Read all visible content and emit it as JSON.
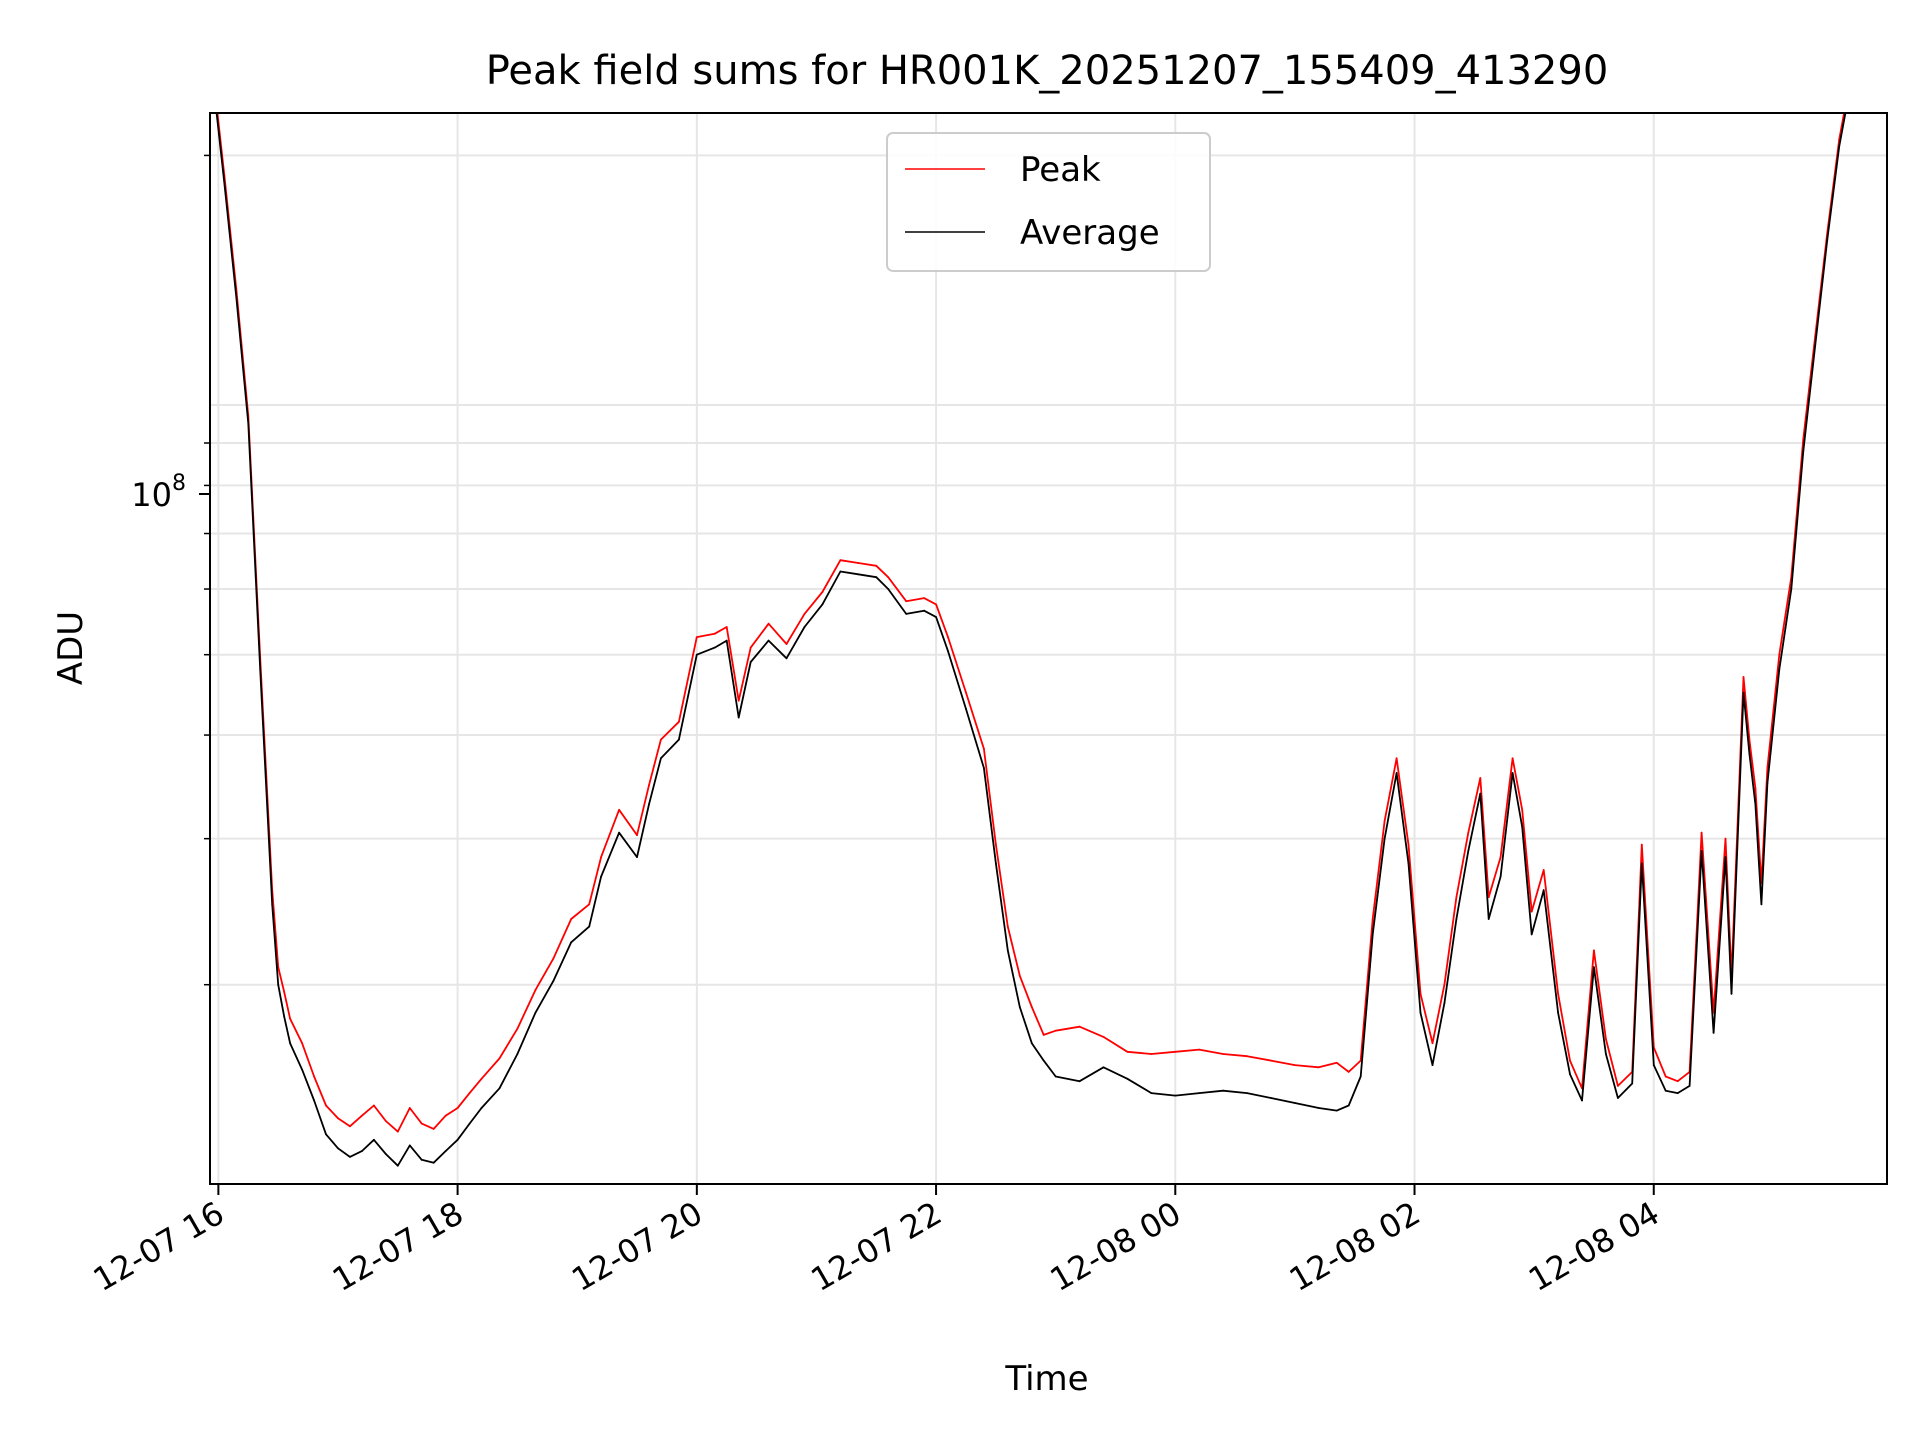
{
  "chart_data": {
    "type": "line",
    "title": "Peak field sums for HR001K_20251207_155409_413290",
    "xlabel": "Time",
    "ylabel": "ADU",
    "yscale": "log",
    "ylim": [
      11500000,
      225000000
    ],
    "xlim_hours": [
      -0.07,
      13.95
    ],
    "x_tick_labels": [
      "12-07 16",
      "12-07 18",
      "12-07 20",
      "12-07 22",
      "12-08 00",
      "12-08 02",
      "12-08 04"
    ],
    "x_tick_hours": [
      0,
      2,
      4,
      6,
      8,
      10,
      12
    ],
    "y_tick_label": {
      "base": "10",
      "exponent": "8"
    },
    "y_tick_value": 100000000,
    "grid": true,
    "legend_placement": "upper-center",
    "legend": [
      {
        "name": "Peak",
        "color": "#ff0000"
      },
      {
        "name": "Average",
        "color": "#000000"
      }
    ],
    "x_unit": "hours since 12-07 16:00",
    "series": [
      {
        "name": "Average",
        "color": "#000000",
        "points": [
          [
            -0.05,
            250000000
          ],
          [
            0.05,
            185000000
          ],
          [
            0.15,
            135000000
          ],
          [
            0.25,
            95000000
          ],
          [
            0.35,
            48000000
          ],
          [
            0.45,
            25000000
          ],
          [
            0.5,
            20000000
          ],
          [
            0.55,
            18300000
          ],
          [
            0.6,
            17000000
          ],
          [
            0.7,
            15800000
          ],
          [
            0.8,
            14500000
          ],
          [
            0.9,
            13200000
          ],
          [
            1.0,
            12700000
          ],
          [
            1.1,
            12400000
          ],
          [
            1.2,
            12600000
          ],
          [
            1.3,
            13000000
          ],
          [
            1.4,
            12500000
          ],
          [
            1.5,
            12100000
          ],
          [
            1.6,
            12800000
          ],
          [
            1.7,
            12300000
          ],
          [
            1.8,
            12200000
          ],
          [
            1.9,
            12600000
          ],
          [
            2.0,
            13000000
          ],
          [
            2.1,
            13600000
          ],
          [
            2.2,
            14200000
          ],
          [
            2.35,
            15000000
          ],
          [
            2.5,
            16500000
          ],
          [
            2.65,
            18500000
          ],
          [
            2.8,
            20200000
          ],
          [
            2.95,
            22500000
          ],
          [
            3.1,
            23500000
          ],
          [
            3.2,
            27000000
          ],
          [
            3.35,
            30500000
          ],
          [
            3.5,
            28500000
          ],
          [
            3.6,
            33000000
          ],
          [
            3.7,
            37500000
          ],
          [
            3.85,
            39500000
          ],
          [
            4.0,
            50000000
          ],
          [
            4.15,
            51000000
          ],
          [
            4.25,
            52000000
          ],
          [
            4.35,
            42000000
          ],
          [
            4.45,
            49000000
          ],
          [
            4.6,
            52000000
          ],
          [
            4.75,
            49500000
          ],
          [
            4.9,
            54000000
          ],
          [
            5.05,
            57500000
          ],
          [
            5.2,
            63000000
          ],
          [
            5.35,
            62500000
          ],
          [
            5.5,
            62000000
          ],
          [
            5.6,
            60000000
          ],
          [
            5.75,
            56000000
          ],
          [
            5.9,
            56500000
          ],
          [
            6.0,
            55500000
          ],
          [
            6.1,
            50500000
          ],
          [
            6.25,
            43000000
          ],
          [
            6.4,
            36500000
          ],
          [
            6.5,
            28000000
          ],
          [
            6.6,
            22000000
          ],
          [
            6.7,
            18800000
          ],
          [
            6.8,
            17000000
          ],
          [
            6.9,
            16200000
          ],
          [
            7.0,
            15500000
          ],
          [
            7.2,
            15300000
          ],
          [
            7.4,
            15900000
          ],
          [
            7.6,
            15400000
          ],
          [
            7.8,
            14800000
          ],
          [
            8.0,
            14700000
          ],
          [
            8.2,
            14800000
          ],
          [
            8.4,
            14900000
          ],
          [
            8.6,
            14800000
          ],
          [
            8.8,
            14600000
          ],
          [
            9.0,
            14400000
          ],
          [
            9.2,
            14200000
          ],
          [
            9.35,
            14100000
          ],
          [
            9.45,
            14300000
          ],
          [
            9.55,
            15500000
          ],
          [
            9.65,
            23000000
          ],
          [
            9.75,
            30000000
          ],
          [
            9.85,
            36000000
          ],
          [
            9.95,
            28000000
          ],
          [
            10.05,
            18500000
          ],
          [
            10.15,
            16000000
          ],
          [
            10.25,
            19000000
          ],
          [
            10.35,
            24000000
          ],
          [
            10.45,
            29000000
          ],
          [
            10.55,
            34000000
          ],
          [
            10.62,
            24000000
          ],
          [
            10.72,
            27000000
          ],
          [
            10.82,
            36000000
          ],
          [
            10.9,
            31000000
          ],
          [
            10.98,
            23000000
          ],
          [
            11.08,
            26000000
          ],
          [
            11.2,
            18500000
          ],
          [
            11.3,
            15600000
          ],
          [
            11.4,
            14500000
          ],
          [
            11.5,
            21000000
          ],
          [
            11.6,
            16500000
          ],
          [
            11.7,
            14600000
          ],
          [
            11.82,
            15200000
          ],
          [
            11.9,
            28000000
          ],
          [
            12.0,
            16000000
          ],
          [
            12.1,
            14900000
          ],
          [
            12.2,
            14800000
          ],
          [
            12.3,
            15100000
          ],
          [
            12.4,
            29000000
          ],
          [
            12.5,
            17500000
          ],
          [
            12.6,
            28500000
          ],
          [
            12.65,
            19500000
          ],
          [
            12.75,
            45000000
          ],
          [
            12.8,
            38000000
          ],
          [
            12.85,
            33000000
          ],
          [
            12.9,
            25000000
          ],
          [
            12.95,
            35000000
          ],
          [
            13.05,
            48000000
          ],
          [
            13.15,
            60000000
          ],
          [
            13.25,
            88000000
          ],
          [
            13.35,
            118000000
          ],
          [
            13.45,
            158000000
          ],
          [
            13.55,
            205000000
          ],
          [
            13.65,
            245000000
          ]
        ]
      },
      {
        "name": "Peak",
        "color": "#ff0000",
        "points": [
          [
            -0.05,
            255000000
          ],
          [
            0.05,
            189000000
          ],
          [
            0.15,
            138000000
          ],
          [
            0.25,
            97000000
          ],
          [
            0.35,
            49500000
          ],
          [
            0.45,
            26000000
          ],
          [
            0.5,
            21000000
          ],
          [
            0.55,
            19600000
          ],
          [
            0.6,
            18200000
          ],
          [
            0.7,
            17000000
          ],
          [
            0.8,
            15500000
          ],
          [
            0.9,
            14300000
          ],
          [
            1.0,
            13800000
          ],
          [
            1.1,
            13500000
          ],
          [
            1.2,
            13900000
          ],
          [
            1.3,
            14300000
          ],
          [
            1.4,
            13700000
          ],
          [
            1.5,
            13300000
          ],
          [
            1.6,
            14200000
          ],
          [
            1.7,
            13600000
          ],
          [
            1.8,
            13400000
          ],
          [
            1.9,
            13900000
          ],
          [
            2.0,
            14200000
          ],
          [
            2.1,
            14800000
          ],
          [
            2.2,
            15400000
          ],
          [
            2.35,
            16300000
          ],
          [
            2.5,
            17700000
          ],
          [
            2.65,
            19700000
          ],
          [
            2.8,
            21500000
          ],
          [
            2.95,
            24000000
          ],
          [
            3.1,
            25000000
          ],
          [
            3.2,
            28500000
          ],
          [
            3.35,
            32500000
          ],
          [
            3.5,
            30300000
          ],
          [
            3.6,
            34800000
          ],
          [
            3.7,
            39500000
          ],
          [
            3.85,
            41500000
          ],
          [
            4.0,
            52500000
          ],
          [
            4.15,
            53000000
          ],
          [
            4.25,
            54000000
          ],
          [
            4.35,
            44000000
          ],
          [
            4.45,
            51000000
          ],
          [
            4.6,
            54500000
          ],
          [
            4.75,
            51500000
          ],
          [
            4.9,
            56000000
          ],
          [
            5.05,
            59500000
          ],
          [
            5.2,
            65000000
          ],
          [
            5.35,
            64500000
          ],
          [
            5.5,
            64000000
          ],
          [
            5.6,
            62000000
          ],
          [
            5.75,
            58000000
          ],
          [
            5.9,
            58500000
          ],
          [
            6.0,
            57500000
          ],
          [
            6.1,
            52500000
          ],
          [
            6.25,
            45000000
          ],
          [
            6.4,
            38500000
          ],
          [
            6.5,
            29500000
          ],
          [
            6.6,
            23500000
          ],
          [
            6.7,
            20500000
          ],
          [
            6.8,
            18800000
          ],
          [
            6.9,
            17400000
          ],
          [
            7.0,
            17600000
          ],
          [
            7.2,
            17800000
          ],
          [
            7.4,
            17300000
          ],
          [
            7.6,
            16600000
          ],
          [
            7.8,
            16500000
          ],
          [
            8.0,
            16600000
          ],
          [
            8.2,
            16700000
          ],
          [
            8.4,
            16500000
          ],
          [
            8.6,
            16400000
          ],
          [
            8.8,
            16200000
          ],
          [
            9.0,
            16000000
          ],
          [
            9.2,
            15900000
          ],
          [
            9.35,
            16100000
          ],
          [
            9.45,
            15700000
          ],
          [
            9.55,
            16200000
          ],
          [
            9.65,
            24000000
          ],
          [
            9.75,
            31500000
          ],
          [
            9.85,
            37500000
          ],
          [
            9.95,
            29500000
          ],
          [
            10.05,
            19500000
          ],
          [
            10.15,
            17000000
          ],
          [
            10.25,
            20000000
          ],
          [
            10.35,
            25500000
          ],
          [
            10.45,
            30500000
          ],
          [
            10.55,
            35500000
          ],
          [
            10.62,
            25500000
          ],
          [
            10.72,
            28500000
          ],
          [
            10.82,
            37500000
          ],
          [
            10.9,
            32500000
          ],
          [
            10.98,
            24500000
          ],
          [
            11.08,
            27500000
          ],
          [
            11.2,
            19500000
          ],
          [
            11.3,
            16200000
          ],
          [
            11.4,
            15000000
          ],
          [
            11.5,
            22000000
          ],
          [
            11.6,
            17200000
          ],
          [
            11.7,
            15100000
          ],
          [
            11.82,
            15700000
          ],
          [
            11.9,
            29500000
          ],
          [
            12.0,
            16800000
          ],
          [
            12.1,
            15500000
          ],
          [
            12.2,
            15300000
          ],
          [
            12.3,
            15700000
          ],
          [
            12.4,
            30500000
          ],
          [
            12.5,
            18500000
          ],
          [
            12.6,
            30000000
          ],
          [
            12.65,
            20500000
          ],
          [
            12.75,
            47000000
          ],
          [
            12.8,
            39500000
          ],
          [
            12.85,
            34500000
          ],
          [
            12.9,
            26500000
          ],
          [
            12.95,
            36500000
          ],
          [
            13.05,
            50000000
          ],
          [
            13.15,
            62000000
          ],
          [
            13.25,
            91000000
          ],
          [
            13.35,
            121000000
          ],
          [
            13.45,
            161000000
          ],
          [
            13.55,
            209000000
          ],
          [
            13.65,
            250000000
          ]
        ]
      }
    ]
  }
}
